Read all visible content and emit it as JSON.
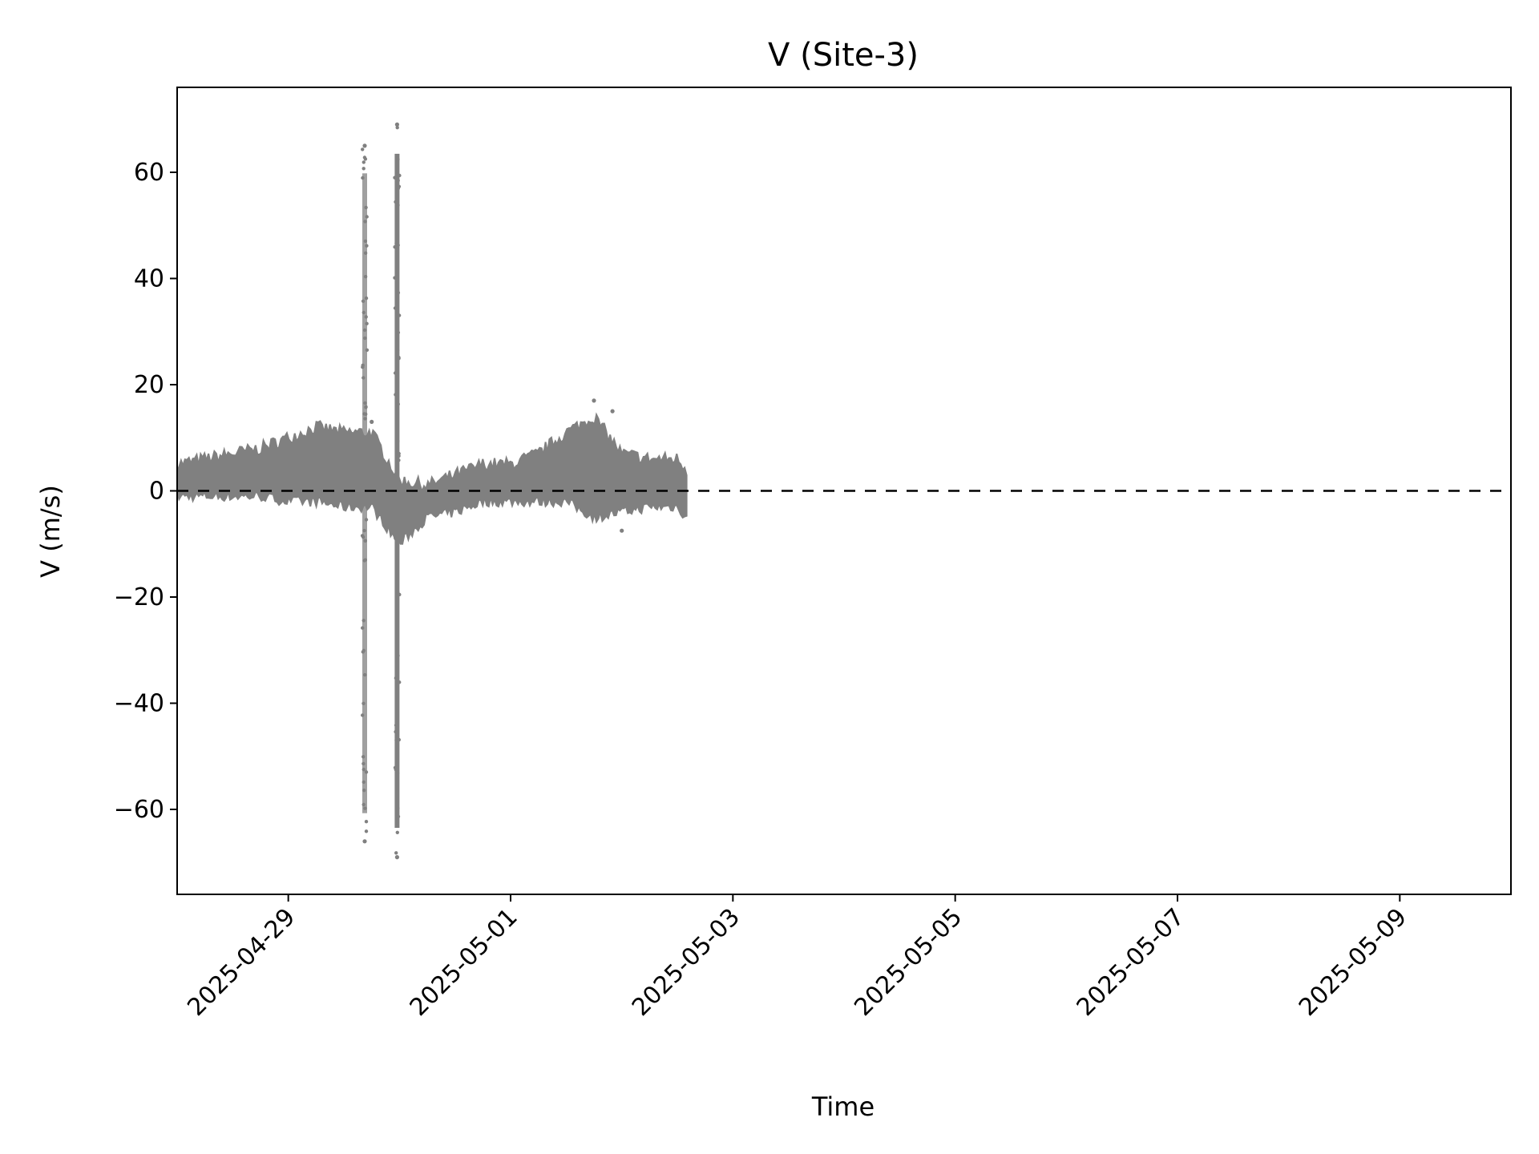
{
  "chart_data": {
    "type": "scatter",
    "title": "V (Site-3)",
    "xlabel": "Time",
    "ylabel": "V (m/s)",
    "x_axis": "date",
    "xlim": [
      "2025-04-28T00:00",
      "2025-05-10T00:00"
    ],
    "ylim": [
      -76,
      76
    ],
    "x_ticks": [
      "2025-04-29",
      "2025-05-01",
      "2025-05-03",
      "2025-05-05",
      "2025-05-07",
      "2025-05-09"
    ],
    "y_ticks": [
      -60,
      -40,
      -20,
      0,
      20,
      40,
      60
    ],
    "y_tick_labels": [
      "−60",
      "−40",
      "−20",
      "0",
      "20",
      "40",
      "60"
    ],
    "grid": false,
    "reference_line": {
      "y": 0,
      "style": "dashed",
      "color": "#000000"
    },
    "series": [
      {
        "marker_color": "#808080",
        "band": {
          "x": [
            "2025-04-28T00:00",
            "2025-04-28T06:00",
            "2025-04-28T12:00",
            "2025-04-28T18:00",
            "2025-04-29T00:00",
            "2025-04-29T06:00",
            "2025-04-29T12:00",
            "2025-04-29T18:00",
            "2025-04-30T00:00",
            "2025-04-30T06:00",
            "2025-04-30T12:00",
            "2025-04-30T18:00",
            "2025-05-01T00:00",
            "2025-05-01T06:00",
            "2025-05-01T12:00",
            "2025-05-01T18:00",
            "2025-05-02T00:00",
            "2025-05-02T06:00",
            "2025-05-02T12:00",
            "2025-05-02T14:00"
          ],
          "center": [
            2,
            2.5,
            3,
            4,
            5,
            5.5,
            5,
            2,
            -3,
            -2,
            -1.5,
            1,
            1,
            2.5,
            5,
            6,
            2,
            2,
            2,
            0
          ],
          "lower": [
            -1,
            -1,
            -1,
            -1,
            -2,
            -2,
            -3,
            -3,
            -10,
            -5,
            -4,
            -2,
            -2,
            -2,
            -2,
            -5,
            -4,
            -3,
            -3,
            -5
          ],
          "upper": [
            5,
            6,
            7,
            8,
            10,
            12,
            11,
            11,
            2,
            1,
            3,
            5,
            5,
            7,
            11,
            14,
            7,
            6,
            6,
            4
          ]
        },
        "spikes": [
          {
            "x": "2025-04-29T16:30",
            "ymin": -66,
            "ymax": 65
          },
          {
            "x": "2025-04-29T23:30",
            "ymin": -69,
            "ymax": 69
          }
        ],
        "outliers": [
          {
            "x": "2025-05-01T18:00",
            "y": 17
          },
          {
            "x": "2025-05-01T22:00",
            "y": 15
          },
          {
            "x": "2025-05-02T00:00",
            "y": -7.5
          },
          {
            "x": "2025-04-29T18:00",
            "y": 13
          }
        ]
      }
    ]
  }
}
